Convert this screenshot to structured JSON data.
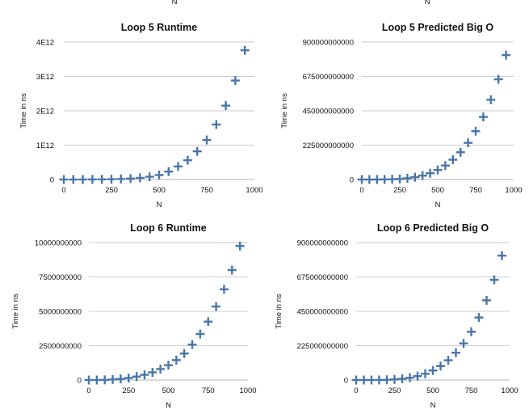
{
  "top_cutoff_label": "N",
  "colors": {
    "marker": "#4a76a8",
    "grid": "#bdbdbd",
    "text": "#111111"
  },
  "chart_data": [
    {
      "type": "scatter",
      "title": "Loop 5 Runtime",
      "xlabel": "N",
      "ylabel": "Time in ns",
      "xlim": [
        0,
        1000
      ],
      "ylim": [
        0,
        4000000000000
      ],
      "x_ticks": [
        "0",
        "250",
        "500",
        "750",
        "1000"
      ],
      "y_ticks": [
        "0",
        "1E12",
        "2E12",
        "3E12",
        "4E12"
      ],
      "grid": "horizontal",
      "marker": "plus",
      "x": [
        0,
        50,
        100,
        150,
        200,
        250,
        300,
        350,
        400,
        450,
        500,
        550,
        600,
        650,
        700,
        750,
        800,
        850,
        900,
        950
      ],
      "y": [
        0,
        0,
        500000000,
        2000000000,
        4000000000,
        8000000000,
        16000000000,
        28000000000,
        48000000000,
        80000000000,
        130000000000,
        230000000000,
        380000000000,
        560000000000,
        820000000000,
        1150000000000,
        1600000000000,
        2150000000000,
        2880000000000,
        3760000000000
      ]
    },
    {
      "type": "scatter",
      "title": "Loop 5 Predicted Big O",
      "xlabel": "N",
      "ylabel": "Time in ns",
      "xlim": [
        0,
        1000
      ],
      "ylim": [
        0,
        900000000000
      ],
      "x_ticks": [
        "0",
        "250",
        "500",
        "750",
        "1000"
      ],
      "y_ticks": [
        "0",
        "225000000000",
        "450000000000",
        "675000000000",
        "900000000000"
      ],
      "grid": "horizontal",
      "marker": "plus",
      "x": [
        0,
        50,
        100,
        150,
        200,
        250,
        300,
        350,
        400,
        450,
        500,
        550,
        600,
        650,
        700,
        750,
        800,
        850,
        900,
        950
      ],
      "y": [
        0,
        0,
        100000000,
        500000000,
        1600000000,
        3900000000,
        8100000000,
        15000000000,
        25600000000,
        41000000000,
        62500000000,
        91500000000,
        129600000000,
        178500000000,
        240100000000,
        316400000000,
        409600000000,
        522000000000,
        656100000000,
        814500000000
      ]
    },
    {
      "type": "scatter",
      "title": "Loop 6 Runtime",
      "xlabel": "N",
      "ylabel": "Time in ns",
      "xlim": [
        0,
        1000
      ],
      "ylim": [
        0,
        10000000000
      ],
      "x_ticks": [
        "0",
        "250",
        "500",
        "750",
        "1000"
      ],
      "y_ticks": [
        "0",
        "2500000000",
        "5000000000",
        "7500000000",
        "10000000000"
      ],
      "grid": "horizontal",
      "marker": "plus",
      "x": [
        0,
        50,
        100,
        150,
        200,
        250,
        300,
        350,
        400,
        450,
        500,
        550,
        600,
        650,
        700,
        750,
        800,
        850,
        900,
        950
      ],
      "y": [
        0,
        2000000,
        12000000,
        40000000,
        80000000,
        150000000,
        250000000,
        380000000,
        560000000,
        800000000,
        1080000000,
        1450000000,
        1930000000,
        2580000000,
        3350000000,
        4250000000,
        5350000000,
        6600000000,
        8000000000,
        9750000000
      ]
    },
    {
      "type": "scatter",
      "title": "Loop 6 Predicted Big O",
      "xlabel": "N",
      "ylabel": "Time in ns",
      "xlim": [
        0,
        1000
      ],
      "ylim": [
        0,
        900000000000
      ],
      "x_ticks": [
        "0",
        "250",
        "500",
        "750",
        "1000"
      ],
      "y_ticks": [
        "0",
        "225000000000",
        "450000000000",
        "675000000000",
        "900000000000"
      ],
      "grid": "horizontal",
      "marker": "plus",
      "x": [
        0,
        50,
        100,
        150,
        200,
        250,
        300,
        350,
        400,
        450,
        500,
        550,
        600,
        650,
        700,
        750,
        800,
        850,
        900,
        950
      ],
      "y": [
        0,
        0,
        100000000,
        500000000,
        1600000000,
        3900000000,
        8100000000,
        15000000000,
        25600000000,
        41000000000,
        62500000000,
        91500000000,
        129600000000,
        178500000000,
        240100000000,
        316400000000,
        409600000000,
        522000000000,
        656100000000,
        814500000000
      ]
    }
  ]
}
